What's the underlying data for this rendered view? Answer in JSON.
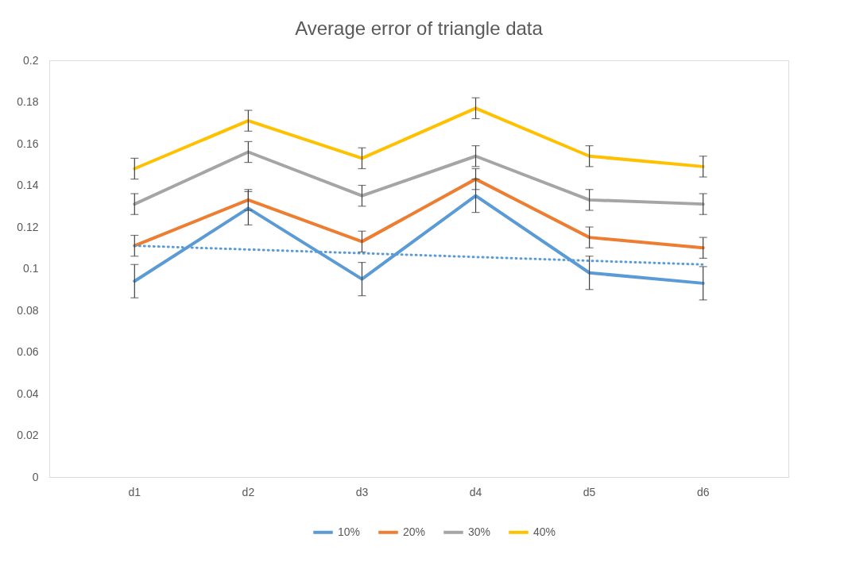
{
  "chart_data": {
    "type": "line",
    "title": "Average error of triangle data",
    "categories": [
      "d1",
      "d2",
      "d3",
      "d4",
      "d5",
      "d6"
    ],
    "series": [
      {
        "name": "10%",
        "color": "#5b9bd5",
        "values": [
          0.094,
          0.129,
          0.095,
          0.135,
          0.098,
          0.093
        ],
        "errors": [
          0.008,
          0.008,
          0.008,
          0.008,
          0.008,
          0.008
        ]
      },
      {
        "name": "20%",
        "color": "#ed7d31",
        "values": [
          0.111,
          0.133,
          0.113,
          0.143,
          0.115,
          0.11
        ],
        "errors": [
          0.005,
          0.005,
          0.005,
          0.005,
          0.005,
          0.005
        ]
      },
      {
        "name": "30%",
        "color": "#a5a5a5",
        "values": [
          0.131,
          0.156,
          0.135,
          0.154,
          0.133,
          0.131
        ],
        "errors": [
          0.005,
          0.005,
          0.005,
          0.005,
          0.005,
          0.005
        ]
      },
      {
        "name": "40%",
        "color": "#ffc000",
        "values": [
          0.148,
          0.171,
          0.153,
          0.177,
          0.154,
          0.149
        ],
        "errors": [
          0.005,
          0.005,
          0.005,
          0.005,
          0.005,
          0.005
        ]
      },
      {
        "type": "line",
        "color": "#5b9bd5",
        "line_style": "dotted",
        "x": [
          "d1",
          "d6"
        ],
        "values": [
          0.111,
          0.102
        ]
      }
    ],
    "ylim": [
      0,
      0.2
    ],
    "yticks": [
      0,
      0.02,
      0.04,
      0.06,
      0.08,
      0.1,
      0.12,
      0.14,
      0.16,
      0.18,
      0.2
    ],
    "grid": false,
    "legend": "bottom",
    "marker": "none",
    "line_style": "solid"
  }
}
